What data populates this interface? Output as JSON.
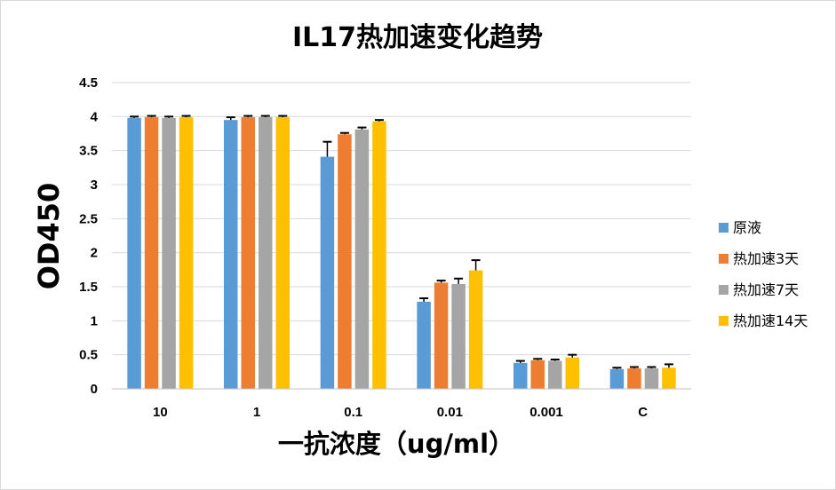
{
  "chart_data": {
    "type": "bar",
    "title": "IL17热加速变化趋势",
    "xlabel": "一抗浓度（ug/ml）",
    "ylabel": "OD450",
    "ylim": [
      0,
      4.5
    ],
    "yticks": [
      "0",
      "0.5",
      "1",
      "1.5",
      "2",
      "2.5",
      "3",
      "3.5",
      "4",
      "4.5"
    ],
    "categories": [
      "10",
      "1",
      "0.1",
      "0.01",
      "0.001",
      "C"
    ],
    "legend_position": "right",
    "grid": true,
    "series": [
      {
        "name": "原液",
        "color": "#5b9bd5",
        "values": [
          3.98,
          3.95,
          3.41,
          1.28,
          0.38,
          0.29
        ],
        "errors": [
          0.02,
          0.04,
          0.22,
          0.05,
          0.03,
          0.02
        ]
      },
      {
        "name": "热加速3天",
        "color": "#ed7d31",
        "values": [
          3.99,
          3.99,
          3.74,
          1.56,
          0.42,
          0.3
        ],
        "errors": [
          0.02,
          0.02,
          0.02,
          0.03,
          0.02,
          0.02
        ]
      },
      {
        "name": "热加速7天",
        "color": "#a5a5a5",
        "values": [
          3.98,
          3.99,
          3.81,
          1.54,
          0.41,
          0.3
        ],
        "errors": [
          0.02,
          0.02,
          0.03,
          0.08,
          0.02,
          0.02
        ]
      },
      {
        "name": "热加速14天",
        "color": "#ffc000",
        "values": [
          3.99,
          3.99,
          3.93,
          1.74,
          0.46,
          0.31
        ],
        "errors": [
          0.02,
          0.02,
          0.02,
          0.15,
          0.04,
          0.05
        ]
      }
    ]
  }
}
